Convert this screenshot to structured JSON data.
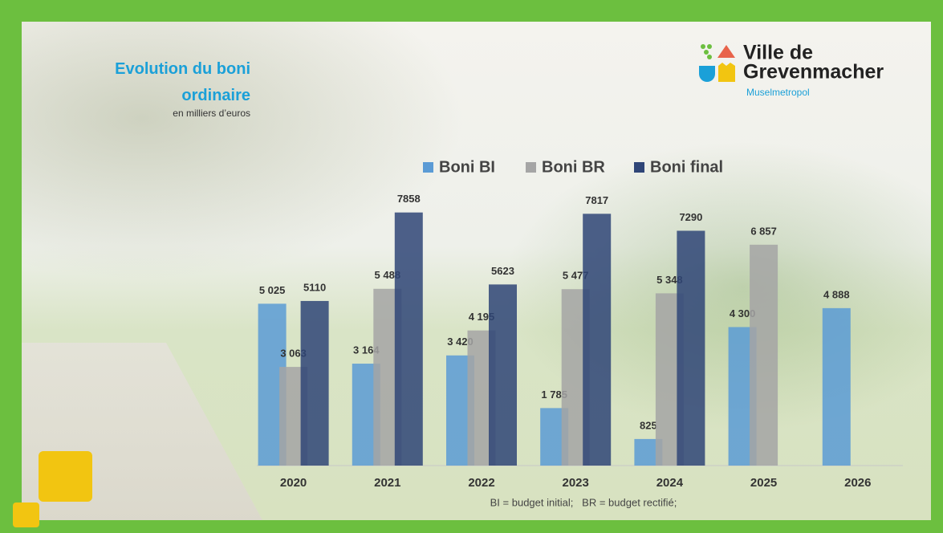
{
  "chart_data": {
    "type": "bar",
    "title": "Evolution du boni ordinaire",
    "subtitle": "en milliers d’euros",
    "footnote": "BI = budget initial;   BR = budget rectifié;",
    "categories": [
      "2020",
      "2021",
      "2022",
      "2023",
      "2024",
      "2025",
      "2026"
    ],
    "series": [
      {
        "name": "Boni BI",
        "color": "#5b9bd5",
        "values": [
          5025,
          3164,
          3420,
          1785,
          825,
          4300,
          4888
        ],
        "value_labels": [
          "5 025",
          "3 164",
          "3 420",
          "1 785",
          "825",
          "4 300",
          "4 888"
        ]
      },
      {
        "name": "Boni BR",
        "color": "#a5a5a5",
        "values": [
          3063,
          5488,
          4195,
          5477,
          5348,
          6857,
          null
        ],
        "value_labels": [
          "3 063",
          "5 488",
          "4 195",
          "5 477",
          "5 348",
          "6 857",
          null
        ]
      },
      {
        "name": "Boni final",
        "color": "#2f4577",
        "values": [
          5110,
          7858,
          5623,
          7817,
          7290,
          null,
          null
        ]
      }
    ],
    "ylim": [
      0,
      8000
    ],
    "legend": "top"
  },
  "logo": {
    "line1": "Ville de",
    "line2": "Grevenmacher",
    "tagline": "Muselmetropol"
  }
}
